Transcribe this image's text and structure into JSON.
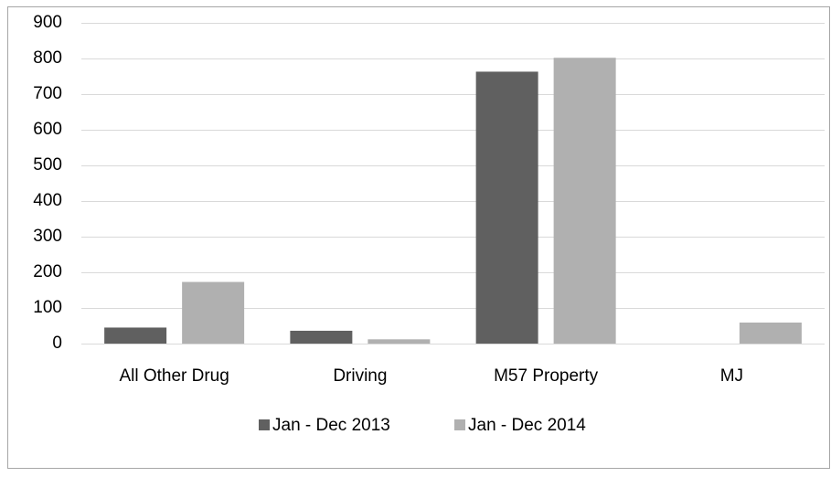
{
  "chart_data": {
    "type": "bar",
    "categories": [
      "All Other Drug",
      "Driving",
      "M57 Property",
      "MJ"
    ],
    "series": [
      {
        "name": "Jan - Dec 2013",
        "color": "#606060",
        "values": [
          45,
          36,
          763,
          0
        ]
      },
      {
        "name": "Jan - Dec 2014",
        "color": "#b0b0b0",
        "values": [
          173,
          12,
          802,
          59
        ]
      }
    ],
    "ylim": [
      0,
      900
    ],
    "yticks": [
      0,
      100,
      200,
      300,
      400,
      500,
      600,
      700,
      800,
      900
    ],
    "grid": true,
    "legend": "bottom"
  }
}
